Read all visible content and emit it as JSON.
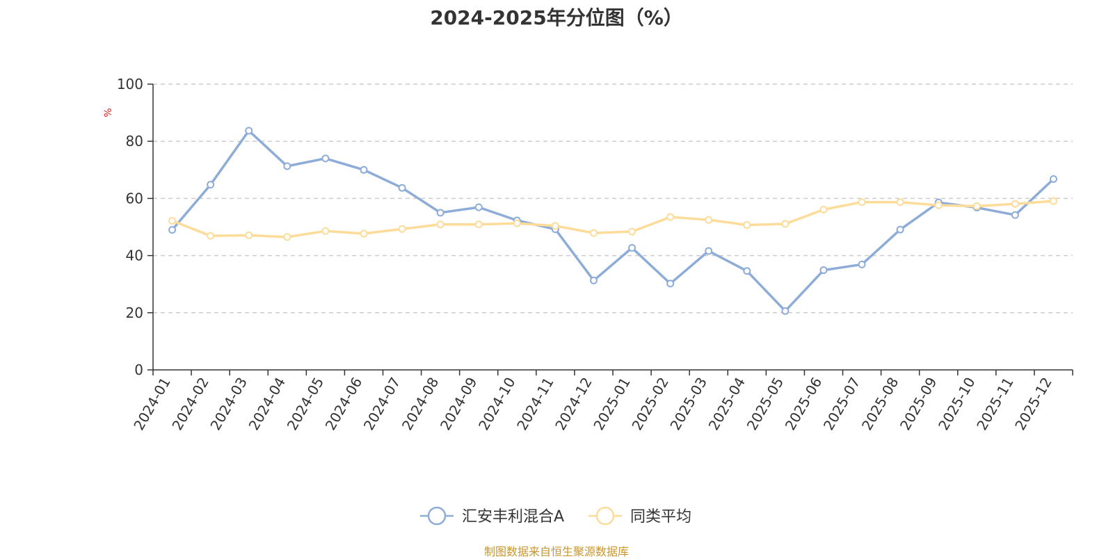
{
  "chart_data": {
    "type": "line",
    "title": "2024-2025年分位图（%）",
    "ylabel": "%",
    "ylim": [
      0,
      100
    ],
    "yticks": [
      0,
      20,
      40,
      60,
      80,
      100
    ],
    "grid": "horizontal dashed",
    "legend_position": "bottom-center",
    "categories": [
      "2024-01",
      "2024-02",
      "2024-03",
      "2024-04",
      "2024-05",
      "2024-06",
      "2024-07",
      "2024-08",
      "2024-09",
      "2024-10",
      "2024-11",
      "2024-12",
      "2025-01",
      "2025-02",
      "2025-03",
      "2025-04",
      "2025-05",
      "2025-06",
      "2025-07",
      "2025-08",
      "2025-09",
      "2025-10",
      "2025-11",
      "2025-12"
    ],
    "series": [
      {
        "name": "汇安丰利混合A",
        "color": "#8eacd8",
        "values": [
          49.0,
          64.8,
          83.7,
          71.3,
          74.0,
          70.0,
          63.7,
          55.0,
          56.9,
          52.3,
          49.2,
          31.3,
          42.7,
          30.2,
          41.6,
          34.6,
          20.6,
          34.9,
          36.9,
          49.1,
          58.6,
          56.8,
          54.2,
          66.8
        ]
      },
      {
        "name": "同类平均",
        "color": "#fddc9a",
        "values": [
          52.2,
          46.9,
          47.1,
          46.5,
          48.6,
          47.7,
          49.3,
          50.9,
          50.9,
          51.3,
          50.4,
          47.9,
          48.4,
          53.5,
          52.5,
          50.7,
          51.1,
          56.1,
          58.7,
          58.7,
          57.6,
          57.3,
          58.1,
          59.1
        ]
      }
    ]
  },
  "source_note": "制图数据来自恒生聚源数据库"
}
